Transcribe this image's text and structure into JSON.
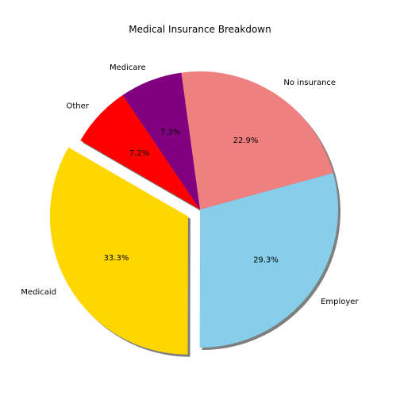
{
  "chart_data": {
    "type": "pie",
    "title": "Medical Insurance Breakdown",
    "slices": [
      {
        "label": "Medicaid",
        "value": 33.3,
        "pct_label": "33.3%",
        "color": "#ffd700",
        "exploded": true
      },
      {
        "label": "Employer",
        "value": 29.3,
        "pct_label": "29.3%",
        "color": "#87ceeb",
        "exploded": false
      },
      {
        "label": "No insurance",
        "value": 22.9,
        "pct_label": "22.9%",
        "color": "#f08080",
        "exploded": false
      },
      {
        "label": "Medicare",
        "value": 7.3,
        "pct_label": "7.3%",
        "color": "#800080",
        "exploded": false
      },
      {
        "label": "Other",
        "value": 7.2,
        "pct_label": "7.2%",
        "color": "#ff0000",
        "exploded": false
      }
    ],
    "start_angle_deg": 150,
    "direction": "counterclockwise",
    "shadow": true,
    "legend": "none"
  }
}
